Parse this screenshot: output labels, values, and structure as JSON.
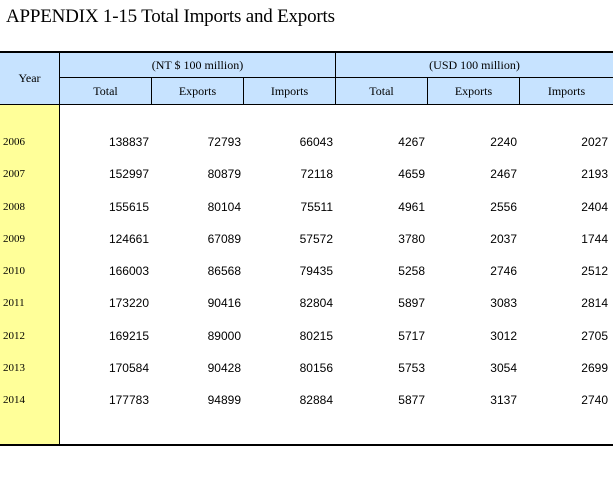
{
  "title": "APPENDIX 1-15  Total Imports and Exports",
  "header": {
    "year": "Year",
    "group_nt": "(NT $ 100 million)",
    "group_usd": "(USD 100 million)",
    "columns": [
      "Total",
      "Exports",
      "Imports",
      "Total",
      "Exports",
      "Imports"
    ]
  },
  "rows": [
    {
      "year": "2006",
      "values": [
        "138837",
        "72793",
        "66043",
        "4267",
        "2240",
        "2027"
      ]
    },
    {
      "year": "2007",
      "values": [
        "152997",
        "80879",
        "72118",
        "4659",
        "2467",
        "2193"
      ]
    },
    {
      "year": "2008",
      "values": [
        "155615",
        "80104",
        "75511",
        "4961",
        "2556",
        "2404"
      ]
    },
    {
      "year": "2009",
      "values": [
        "124661",
        "67089",
        "57572",
        "3780",
        "2037",
        "1744"
      ]
    },
    {
      "year": "2010",
      "values": [
        "166003",
        "86568",
        "79435",
        "5258",
        "2746",
        "2512"
      ]
    },
    {
      "year": "2011",
      "values": [
        "173220",
        "90416",
        "82804",
        "5897",
        "3083",
        "2814"
      ]
    },
    {
      "year": "2012",
      "values": [
        "169215",
        "89000",
        "80215",
        "5717",
        "3012",
        "2705"
      ]
    },
    {
      "year": "2013",
      "values": [
        "170584",
        "90428",
        "80156",
        "5753",
        "3054",
        "2699"
      ]
    },
    {
      "year": "2014",
      "values": [
        "177783",
        "94899",
        "82884",
        "5877",
        "3137",
        "2740"
      ]
    }
  ],
  "colors": {
    "header_bg": "#c7e3ff",
    "year_col_bg": "#ffff99"
  }
}
